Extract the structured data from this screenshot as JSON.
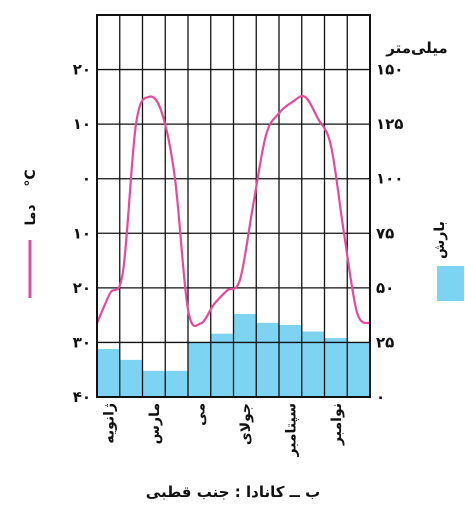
{
  "chart_data": {
    "type": "climograph",
    "title": "ب ــ کانادا : جنب قطبی",
    "months_labeled": [
      "ژانویه",
      "مارس",
      "می",
      "جولای",
      "سپتامبر",
      "نوامبر"
    ],
    "temperature": {
      "label": "دما",
      "unit": "°C",
      "color": "#e64a9c",
      "ticks": [
        "۲۰",
        "۱۰",
        "۰",
        "۱۰",
        "۲۰",
        "۳۰",
        "۴۰"
      ],
      "ylim": [
        -40,
        30
      ],
      "values": [
        -26.5,
        -21,
        -17,
        10,
        15,
        12,
        0,
        -24,
        -26.5,
        -23,
        -20.5,
        -18.5,
        -5,
        8,
        12,
        14,
        15,
        11,
        6,
        -10,
        -24.5,
        -26.5
      ]
    },
    "precipitation": {
      "label": "بارش",
      "unit": "میلی‌متر",
      "color": "#7dd3f2",
      "ticks": [
        "۱۵۰",
        "۱۲۵",
        "۱۰۰",
        "۷۵",
        "۵۰",
        "۲۵",
        "۰"
      ],
      "ylim": [
        0,
        175
      ],
      "values": [
        22,
        17,
        12,
        12,
        25,
        29,
        38,
        34,
        33,
        30,
        27,
        25
      ]
    },
    "grid": true
  }
}
